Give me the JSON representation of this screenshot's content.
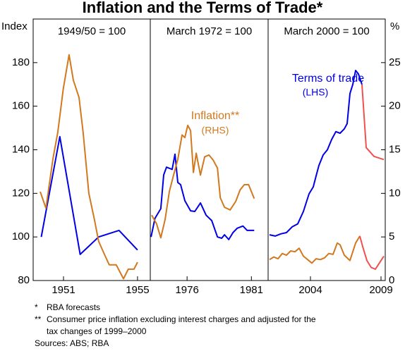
{
  "chart_data": {
    "type": "line",
    "title": "Inflation and the Terms of Trade*",
    "y_label": "Index",
    "y2_label": "%",
    "ylim": [
      80,
      200
    ],
    "yticks": [
      80,
      100,
      120,
      140,
      160,
      180
    ],
    "y2lim": [
      0,
      30
    ],
    "y2ticks": [
      0,
      5,
      10,
      15,
      20,
      25
    ],
    "panels": [
      {
        "subtitle": "1949/50 = 100",
        "xlim": [
          1949.36,
          1955.69
        ],
        "xticks": [
          1951,
          1955
        ],
        "annotations": [],
        "series": [
          {
            "color": "#0000e6",
            "x": [
              1949.8,
              1950.8,
              1951.9,
              1952.9,
              1954.0,
              1955.0
            ],
            "values": [
              100,
              146,
              92,
              100,
              103,
              94
            ]
          },
          {
            "color": "#d2781e",
            "axis": "y2",
            "x": [
              1949.74,
              1950.05,
              1950.43,
              1950.69,
              1950.99,
              1951.3,
              1951.53,
              1951.84,
              1952.06,
              1952.37,
              1952.67,
              1952.9,
              1953.21,
              1953.47,
              1953.85,
              1954.24,
              1954.5,
              1954.81,
              1955.0
            ],
            "values": [
              10.2,
              8.3,
              14,
              17,
              22,
              25.9,
              23,
              21,
              17,
              10,
              7,
              4.5,
              3,
              1.8,
              1.8,
              0.2,
              1.3,
              1.3,
              2.1
            ]
          }
        ]
      },
      {
        "subtitle": "March 1972 = 100",
        "xlim": [
          1973.14,
          1982.3
        ],
        "xticks": [
          1976,
          1981
        ],
        "annotations": [
          {
            "text": "Inflation**",
            "color": "#d2781e"
          },
          {
            "text": "(RHS)",
            "color": "#d2781e"
          }
        ],
        "series": [
          {
            "color": "#0000e6",
            "x": [
              1973.2,
              1973.5,
              1973.96,
              1974.18,
              1974.4,
              1974.84,
              1975.06,
              1975.28,
              1975.5,
              1975.83,
              1976.27,
              1976.6,
              1977.04,
              1977.48,
              1977.92,
              1978.36,
              1978.69,
              1978.91,
              1979.24,
              1979.57,
              1979.9,
              1980.34,
              1980.67,
              1981.22
            ],
            "values": [
              100,
              108.5,
              113,
              128.5,
              132,
              131,
              138,
              125,
              124,
              116.6,
              112,
              111.7,
              115.6,
              110,
              107.5,
              100,
              99.4,
              101,
              98.8,
              102,
              104,
              105,
              103,
              103
            ]
          },
          {
            "color": "#d2781e",
            "axis": "y2",
            "x": [
              1973.25,
              1973.63,
              1973.96,
              1974.29,
              1974.62,
              1974.95,
              1975.28,
              1975.61,
              1975.83,
              1976.05,
              1976.27,
              1976.49,
              1976.71,
              1977.04,
              1977.37,
              1977.7,
              1978.03,
              1978.36,
              1978.58,
              1978.91,
              1979.35,
              1979.79,
              1980.12,
              1980.45,
              1980.78,
              1981.22
            ],
            "values": [
              7.5,
              6.5,
              4.9,
              7,
              10.2,
              12.1,
              13.9,
              16.7,
              16.4,
              17.8,
              17.2,
              12.4,
              14.6,
              12.1,
              14.2,
              14.4,
              13.8,
              12.9,
              9.5,
              8.4,
              8.1,
              9.1,
              10.4,
              11,
              11,
              9.4
            ]
          }
        ]
      },
      {
        "subtitle": "March 2000 = 100",
        "xlim": [
          2001,
          2009.3
        ],
        "xticks": [
          2004,
          2009
        ],
        "annotations": [
          {
            "text": "Terms of trade",
            "color": "#0000e6"
          },
          {
            "text": "(LHS)",
            "color": "#0000e6"
          }
        ],
        "series": [
          {
            "color": "#0000e6",
            "x": [
              2001.1,
              2001.5,
              2001.9,
              2002.3,
              2002.7,
              2003.1,
              2003.5,
              2003.9,
              2004.2,
              2004.4,
              2004.6,
              2004.9,
              2005.2,
              2005.5,
              2005.8,
              2006.1,
              2006.4,
              2006.6,
              2006.8,
              2007.0,
              2007.2,
              2007.4,
              2007.65
            ],
            "values": [
              101,
              100.4,
              101.4,
              102,
              104.6,
              106,
              111.7,
              119.8,
              123,
              128,
              132.8,
              137.6,
              140,
              144.7,
              148.3,
              147.6,
              149.6,
              152,
              165.8,
              170,
              176.4,
              174.8,
              170
            ]
          },
          {
            "color": "#f05050",
            "x": [
              2007.65,
              2007.95,
              2008.5,
              2009.2
            ],
            "values": [
              170,
              141,
              137,
              135.5
            ]
          },
          {
            "color": "#d2781e",
            "axis": "y2",
            "x": [
              2001.1,
              2001.4,
              2001.7,
              2002.0,
              2002.3,
              2002.6,
              2002.9,
              2003.2,
              2003.5,
              2003.8,
              2004.1,
              2004.4,
              2004.7,
              2005.0,
              2005.3,
              2005.6,
              2005.9,
              2006.1,
              2006.4,
              2006.8,
              2007.2,
              2007.5
            ],
            "values": [
              2.4,
              2.7,
              2.5,
              3.1,
              2.9,
              3.4,
              3.3,
              3.7,
              2.8,
              2.4,
              2.0,
              2.5,
              2.4,
              2.6,
              3.1,
              3.0,
              4.3,
              4.1,
              2.9,
              2.3,
              4.3,
              5.1
            ]
          },
          {
            "color": "#f05050",
            "axis": "y2",
            "x": [
              2007.5,
              2007.7,
              2008.0,
              2008.3,
              2008.6,
              2009.2
            ],
            "values": [
              5.1,
              3.9,
              2.3,
              1.5,
              1.3,
              2.8
            ]
          }
        ]
      }
    ],
    "notes": [
      {
        "marker": "*",
        "lines": [
          "RBA forecasts"
        ]
      },
      {
        "marker": "**",
        "lines": [
          "Consumer price inflation excluding interest charges and adjusted for the",
          "tax changes of 1999–2000"
        ]
      }
    ],
    "source": "Sources: ABS; RBA"
  }
}
